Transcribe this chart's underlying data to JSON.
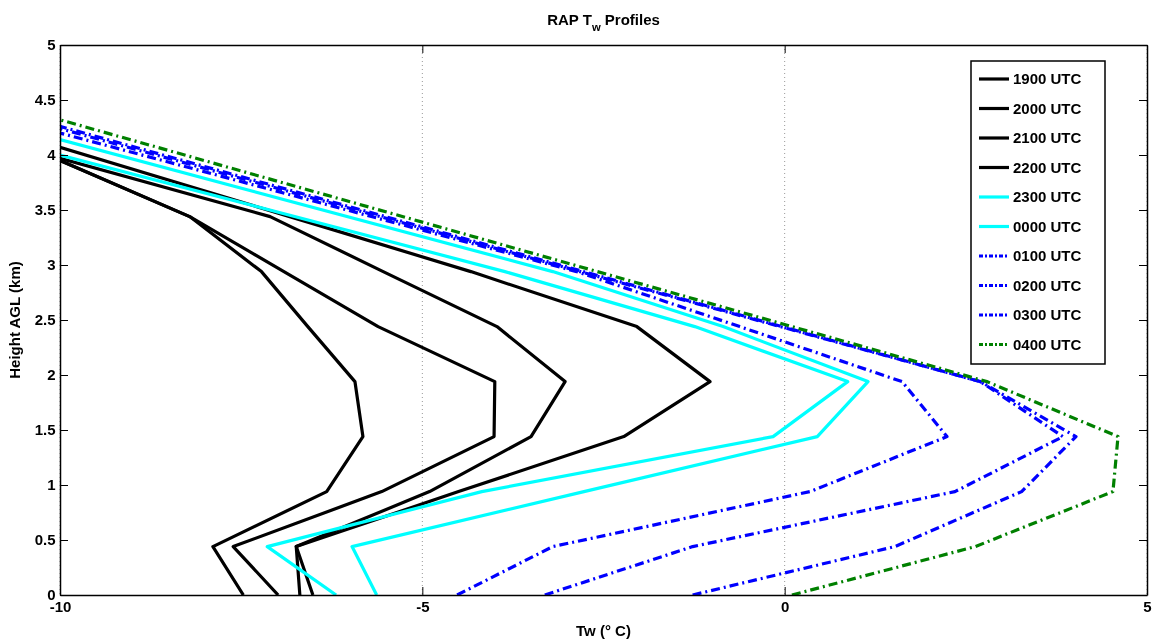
{
  "chart_data": {
    "type": "line",
    "title": "RAP T$_{w}$ Profiles",
    "xlabel": "Tw (° C)",
    "ylabel": "Height AGL (km)",
    "xlim": [
      -10,
      5
    ],
    "ylim": [
      0,
      5
    ],
    "xticks": [
      -10,
      -5,
      0,
      5
    ],
    "yticks": [
      0,
      0.5,
      1,
      1.5,
      2,
      2.5,
      3,
      3.5,
      4,
      4.5,
      5
    ],
    "grid": "x",
    "legend": "top right",
    "series": [
      {
        "name": "1900 UTC",
        "color": "#000000",
        "line_style": "solid",
        "x": [
          -7.47,
          -7.89,
          -6.32,
          -5.82,
          -5.93,
          -6.58,
          -7.22,
          -8.21,
          -10
        ],
        "values": [
          0,
          0.44,
          0.94,
          1.44,
          1.94,
          2.44,
          2.94,
          3.44,
          3.95
        ]
      },
      {
        "name": "2000 UTC",
        "color": "#000000",
        "line_style": "solid",
        "x": [
          -6.99,
          -7.61,
          -5.56,
          -4.01,
          -4.0,
          -5.61,
          -6.91,
          -8.21,
          -10
        ],
        "values": [
          0,
          0.44,
          0.94,
          1.44,
          1.94,
          2.44,
          2.94,
          3.44,
          3.95
        ]
      },
      {
        "name": "2100 UTC",
        "color": "#000000",
        "line_style": "solid",
        "x": [
          -6.69,
          -6.74,
          -4.9,
          -3.5,
          -3.03,
          -3.97,
          -5.54,
          -7.1,
          -10
        ],
        "values": [
          0,
          0.44,
          0.94,
          1.44,
          1.94,
          2.44,
          2.94,
          3.44,
          3.97
        ]
      },
      {
        "name": "2200 UTC",
        "color": "#000000",
        "line_style": "solid",
        "x": [
          -6.51,
          -6.74,
          -4.5,
          -2.22,
          -1.03,
          -2.04,
          -4.33,
          -6.83,
          -10
        ],
        "values": [
          0,
          0.44,
          0.94,
          1.44,
          1.94,
          2.44,
          2.94,
          3.44,
          4.07
        ]
      },
      {
        "name": "2300 UTC",
        "color": "#00ffff",
        "line_style": "solid",
        "x": [
          -6.19,
          -7.14,
          -4.18,
          -0.16,
          0.87,
          -1.24,
          -3.86,
          -10
        ],
        "values": [
          0,
          0.44,
          0.94,
          1.44,
          1.94,
          2.44,
          2.94,
          4.0
        ]
      },
      {
        "name": "0000 UTC",
        "color": "#00ffff",
        "line_style": "solid",
        "x": [
          -5.63,
          -5.97,
          -2.77,
          0.45,
          1.15,
          -0.85,
          -3.2,
          -10
        ],
        "values": [
          0,
          0.44,
          0.94,
          1.44,
          1.94,
          2.44,
          2.94,
          4.14
        ]
      },
      {
        "name": "0100 UTC",
        "color": "#0000ff",
        "line_style": "dashdot",
        "x": [
          -4.52,
          -3.2,
          0.35,
          2.24,
          1.62,
          -0.62,
          -2.87,
          -10
        ],
        "values": [
          0,
          0.44,
          0.94,
          1.44,
          1.94,
          2.44,
          2.94,
          4.2
        ]
      },
      {
        "name": "0200 UTC",
        "color": "#0000ff",
        "line_style": "dashdot",
        "x": [
          -3.31,
          -1.27,
          2.35,
          3.84,
          2.7,
          -10
        ],
        "values": [
          0,
          0.44,
          0.94,
          1.44,
          1.94,
          4.24
        ]
      },
      {
        "name": "0300 UTC",
        "color": "#0000ff",
        "line_style": "dashdot",
        "x": [
          -1.27,
          1.52,
          3.27,
          4.02,
          2.7,
          -10
        ],
        "values": [
          0,
          0.44,
          0.94,
          1.44,
          1.94,
          4.26
        ]
      },
      {
        "name": "0400 UTC",
        "color": "#008000",
        "line_style": "dashdot",
        "x": [
          0.1,
          2.63,
          4.53,
          4.6,
          2.79,
          -10
        ],
        "values": [
          0,
          0.44,
          0.94,
          1.44,
          1.94,
          4.32
        ]
      }
    ]
  }
}
